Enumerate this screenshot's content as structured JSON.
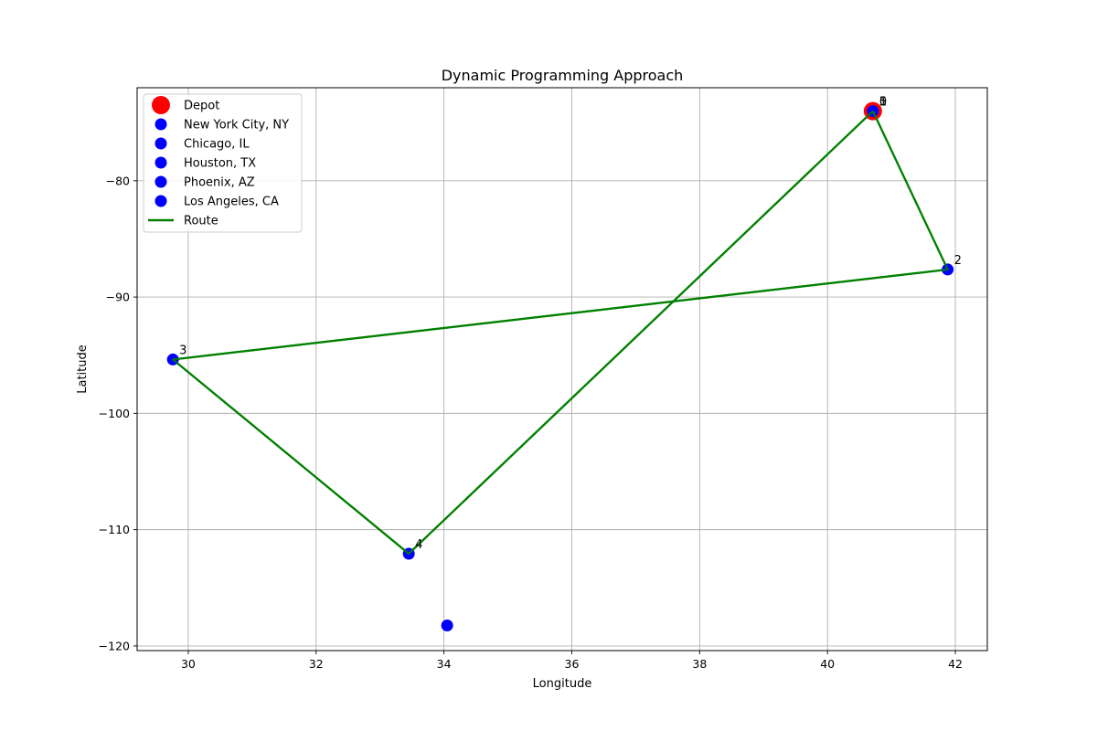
{
  "chart_data": {
    "type": "scatter",
    "title": "Dynamic Programming Approach",
    "xlabel": "Longitude",
    "ylabel": "Latitude",
    "xlim": [
      29.2,
      42.5
    ],
    "ylim": [
      -120.4,
      -72.0
    ],
    "xticks": [
      30,
      32,
      34,
      36,
      38,
      40,
      42
    ],
    "yticks": [
      -120,
      -110,
      -100,
      -90,
      -80
    ],
    "grid": true,
    "legend_placement": "upper-left",
    "depot": {
      "name": "Depot",
      "x": 40.71,
      "y": -74.01,
      "color": "#ff0000"
    },
    "cities": [
      {
        "name": "New York City, NY",
        "x": 40.71,
        "y": -74.01,
        "color": "#0000ff"
      },
      {
        "name": "Chicago, IL",
        "x": 41.88,
        "y": -87.63,
        "color": "#0000ff"
      },
      {
        "name": "Houston, TX",
        "x": 29.76,
        "y": -95.37,
        "color": "#0000ff"
      },
      {
        "name": "Phoenix, AZ",
        "x": 33.45,
        "y": -112.07,
        "color": "#0000ff"
      },
      {
        "name": "Los Angeles, CA",
        "x": 34.05,
        "y": -118.24,
        "color": "#0000ff"
      }
    ],
    "route": {
      "name": "Route",
      "color": "#008000",
      "points": [
        {
          "x": 40.71,
          "y": -74.01
        },
        {
          "x": 41.88,
          "y": -87.63
        },
        {
          "x": 29.76,
          "y": -95.37
        },
        {
          "x": 33.45,
          "y": -112.07
        },
        {
          "x": 40.71,
          "y": -74.01
        }
      ]
    },
    "point_labels": [
      {
        "text": "0",
        "x": 40.71,
        "y": -74.01
      },
      {
        "text": "1",
        "x": 40.71,
        "y": -74.01
      },
      {
        "text": "2",
        "x": 41.88,
        "y": -87.63
      },
      {
        "text": "3",
        "x": 29.76,
        "y": -95.37
      },
      {
        "text": "4",
        "x": 33.45,
        "y": -112.07
      },
      {
        "text": "5",
        "x": 40.71,
        "y": -74.01
      }
    ]
  }
}
